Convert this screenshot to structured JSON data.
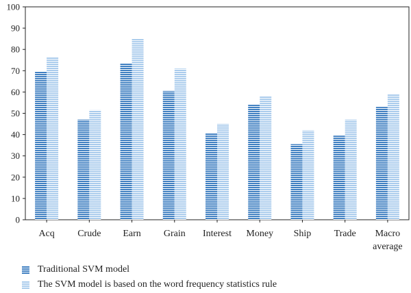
{
  "chart_data": {
    "type": "bar",
    "categories": [
      "Acq",
      "Crude",
      "Earn",
      "Grain",
      "Interest",
      "Money",
      "Ship",
      "Trade",
      "Macro average"
    ],
    "series": [
      {
        "name": "Traditional SVM model",
        "values": [
          69.5,
          47,
          73.5,
          60.5,
          40.5,
          54,
          35.5,
          39.5,
          53
        ],
        "color": "#3f7fc1"
      },
      {
        "name": "The SVM model is based on the word frequency statistics rule",
        "values": [
          76.5,
          51.5,
          85,
          71,
          45,
          58,
          42,
          47,
          59
        ],
        "color": "#a9cbec"
      }
    ],
    "yticks": [
      "0",
      "10",
      "20",
      "30",
      "40",
      "50",
      "60",
      "70",
      "80",
      "90",
      "100"
    ],
    "ylim": [
      0,
      100
    ],
    "title": "",
    "xlabel": "",
    "ylabel": "",
    "grid": false,
    "legend_position": "bottom-left"
  }
}
